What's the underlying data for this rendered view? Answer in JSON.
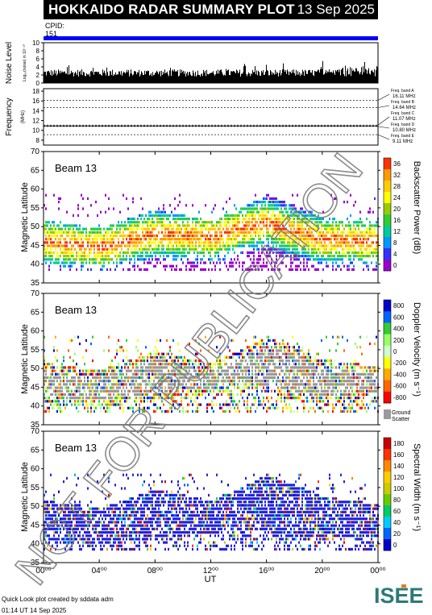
{
  "header": {
    "title": "HOKKAIDO RADAR SUMMARY PLOT",
    "date": "13 Sep 2025"
  },
  "cpid": {
    "label": "CPID:",
    "value": "151"
  },
  "noise_panel": {
    "ylabel": "Noise Level",
    "sublabel": "Log₁₀(noise) in 10⁻¹⁰",
    "ticks": [
      "0",
      "2",
      "4",
      "6",
      "8",
      "10"
    ]
  },
  "freq_panel": {
    "ylabel": "Frequency",
    "unit": "(MHz)",
    "ticks": [
      "8",
      "10",
      "12",
      "14",
      "16",
      "18"
    ],
    "bands": [
      {
        "name": "Freq. band A",
        "value": "16.11 MHz"
      },
      {
        "name": "Freq. band B",
        "value": "14.64 MHz"
      },
      {
        "name": "Freq. band C",
        "value": "11.07 MHz"
      },
      {
        "name": "Freq. band D",
        "value": "10.80 MHz"
      },
      {
        "name": "Freq. band E",
        "value": "9.11 MHz"
      }
    ]
  },
  "panels": [
    {
      "beam": "Beam 13",
      "ylabel": "Magnetic Latitude",
      "cbar_label": "Backscatter Power (dB)",
      "cbar_ticks": [
        "0",
        "4",
        "8",
        "12",
        "16",
        "20",
        "24",
        "28",
        "32",
        "36"
      ]
    },
    {
      "beam": "Beam 13",
      "ylabel": "Magnetic Latitude",
      "cbar_label": "Doppler Velocity (m s⁻¹)",
      "cbar_ticks": [
        "-800",
        "-600",
        "-400",
        "-200",
        "0",
        "200",
        "400",
        "600",
        "800"
      ],
      "ground_label_1": "Ground",
      "ground_label_2": "Scatter"
    },
    {
      "beam": "Beam 13",
      "ylabel": "Magnetic Latitude",
      "cbar_label": "Spectral Width (m s⁻¹)",
      "cbar_ticks": [
        "0",
        "20",
        "40",
        "60",
        "80",
        "100",
        "120",
        "140",
        "160",
        "180"
      ]
    }
  ],
  "chart_data": {
    "type": "heatmap",
    "xlabel": "UT",
    "x_ticks": [
      "00⁰⁰",
      "04⁰⁰",
      "08⁰⁰",
      "12⁰⁰",
      "16⁰⁰",
      "20⁰⁰",
      "00⁰⁰"
    ],
    "xlim": [
      0,
      24
    ],
    "ylim": [
      35,
      70
    ],
    "y_ticks": [
      "35",
      "40",
      "45",
      "50",
      "55",
      "60",
      "65",
      "70"
    ],
    "scatter_band_lat_by_hour": [
      [
        0,
        42,
        49
      ],
      [
        4,
        41,
        47
      ],
      [
        8,
        43,
        52
      ],
      [
        12,
        44,
        49
      ],
      [
        14,
        46,
        52
      ],
      [
        16,
        45,
        56
      ],
      [
        18,
        43,
        53
      ],
      [
        20,
        42,
        50
      ],
      [
        24,
        43,
        48
      ]
    ]
  },
  "watermark": "NOT FOR PUBLICATION",
  "footer": {
    "line1": "Quick Look plot created by sddata adm",
    "line2": "01:14 UT 14 Sep 2025"
  },
  "logo": {
    "text": "ISEE",
    "color_main": "#2b7a78",
    "color_accent": "#e67e22"
  }
}
